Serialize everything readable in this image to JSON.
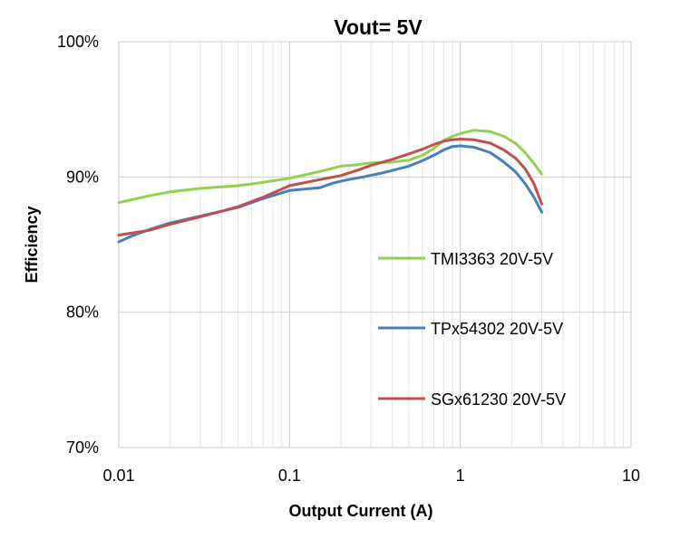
{
  "chart_data": {
    "type": "line",
    "title": "Vout= 5V",
    "xlabel": "Output Current (A)",
    "ylabel": "Efficiency",
    "x_scale": "log",
    "xlim": [
      0.01,
      10
    ],
    "ylim": [
      70,
      100
    ],
    "x_ticks": [
      {
        "value": 0.01,
        "label": "0.01"
      },
      {
        "value": 0.1,
        "label": "0.1"
      },
      {
        "value": 1,
        "label": "1"
      },
      {
        "value": 10,
        "label": "10"
      }
    ],
    "y_ticks": [
      {
        "value": 70,
        "label": "70%"
      },
      {
        "value": 80,
        "label": "80%"
      },
      {
        "value": 90,
        "label": "90%"
      },
      {
        "value": 100,
        "label": "100%"
      }
    ],
    "grid": true,
    "legend_position": "right-middle",
    "series": [
      {
        "name": "TMI3363 20V-5V",
        "color": "#92d050",
        "points": [
          [
            0.01,
            88.1
          ],
          [
            0.015,
            88.6
          ],
          [
            0.02,
            88.9
          ],
          [
            0.03,
            89.15
          ],
          [
            0.05,
            89.35
          ],
          [
            0.07,
            89.6
          ],
          [
            0.1,
            89.9
          ],
          [
            0.15,
            90.4
          ],
          [
            0.2,
            90.8
          ],
          [
            0.25,
            90.9
          ],
          [
            0.3,
            91.05
          ],
          [
            0.4,
            91.1
          ],
          [
            0.5,
            91.25
          ],
          [
            0.6,
            91.6
          ],
          [
            0.7,
            92.1
          ],
          [
            0.8,
            92.7
          ],
          [
            0.9,
            93.0
          ],
          [
            1.0,
            93.2
          ],
          [
            1.2,
            93.45
          ],
          [
            1.5,
            93.35
          ],
          [
            1.8,
            93.0
          ],
          [
            2.1,
            92.5
          ],
          [
            2.4,
            91.8
          ],
          [
            2.7,
            91.0
          ],
          [
            3.0,
            90.2
          ]
        ]
      },
      {
        "name": "TPx54302 20V-5V",
        "color": "#4a7ebb",
        "points": [
          [
            0.01,
            85.2
          ],
          [
            0.012,
            85.65
          ],
          [
            0.015,
            86.1
          ],
          [
            0.02,
            86.6
          ],
          [
            0.03,
            87.1
          ],
          [
            0.05,
            87.75
          ],
          [
            0.07,
            88.4
          ],
          [
            0.1,
            89.0
          ],
          [
            0.15,
            89.2
          ],
          [
            0.18,
            89.55
          ],
          [
            0.22,
            89.8
          ],
          [
            0.27,
            90.0
          ],
          [
            0.35,
            90.3
          ],
          [
            0.5,
            90.8
          ],
          [
            0.6,
            91.2
          ],
          [
            0.7,
            91.6
          ],
          [
            0.8,
            92.0
          ],
          [
            0.9,
            92.25
          ],
          [
            1.0,
            92.3
          ],
          [
            1.2,
            92.2
          ],
          [
            1.5,
            91.8
          ],
          [
            1.8,
            91.1
          ],
          [
            2.1,
            90.4
          ],
          [
            2.4,
            89.5
          ],
          [
            2.7,
            88.5
          ],
          [
            3.0,
            87.4
          ]
        ]
      },
      {
        "name": "SGx61230 20V-5V",
        "color": "#c0504d",
        "points": [
          [
            0.01,
            85.7
          ],
          [
            0.015,
            86.05
          ],
          [
            0.02,
            86.5
          ],
          [
            0.03,
            87.05
          ],
          [
            0.05,
            87.8
          ],
          [
            0.07,
            88.5
          ],
          [
            0.1,
            89.35
          ],
          [
            0.15,
            89.8
          ],
          [
            0.2,
            90.1
          ],
          [
            0.25,
            90.5
          ],
          [
            0.3,
            90.85
          ],
          [
            0.4,
            91.3
          ],
          [
            0.5,
            91.7
          ],
          [
            0.6,
            92.05
          ],
          [
            0.7,
            92.4
          ],
          [
            0.8,
            92.65
          ],
          [
            0.9,
            92.75
          ],
          [
            1.0,
            92.8
          ],
          [
            1.2,
            92.75
          ],
          [
            1.5,
            92.5
          ],
          [
            1.8,
            92.0
          ],
          [
            2.1,
            91.4
          ],
          [
            2.4,
            90.6
          ],
          [
            2.7,
            89.5
          ],
          [
            3.0,
            88.0
          ]
        ]
      }
    ]
  }
}
